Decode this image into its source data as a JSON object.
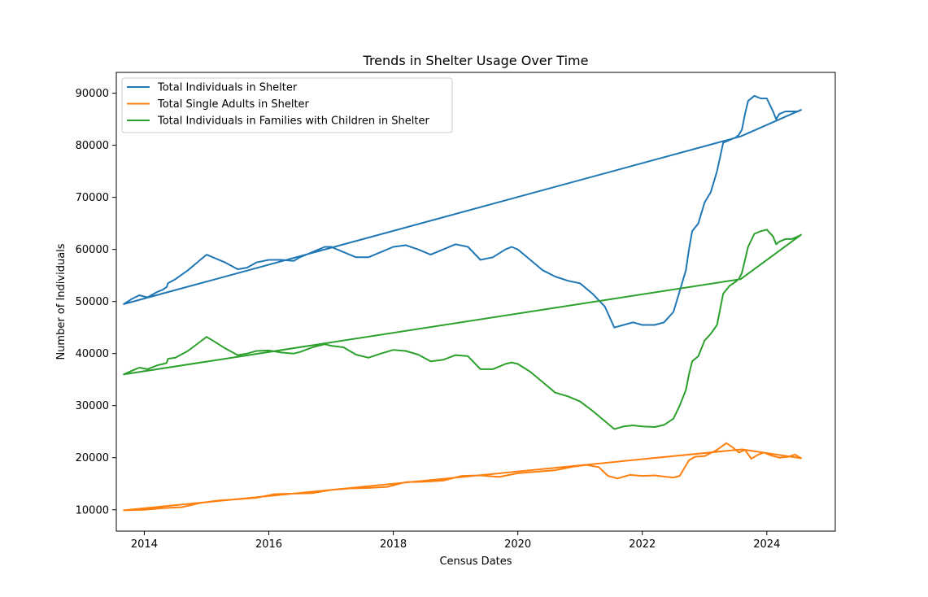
{
  "chart_data": {
    "type": "line",
    "title": "Trends in Shelter Usage Over Time",
    "xlabel": "Census Dates",
    "ylabel": "Number of Individuals",
    "xlim": [
      2013.55,
      2025.1
    ],
    "ylim": [
      5900,
      94000
    ],
    "x_ticks": [
      2014,
      2016,
      2018,
      2020,
      2022,
      2024
    ],
    "x_tick_labels": [
      "2014",
      "2016",
      "2018",
      "2020",
      "2022",
      "2024"
    ],
    "y_ticks": [
      10000,
      20000,
      30000,
      40000,
      50000,
      60000,
      70000,
      80000,
      90000
    ],
    "y_tick_labels": [
      "10000",
      "20000",
      "30000",
      "40000",
      "50000",
      "60000",
      "70000",
      "80000",
      "90000"
    ],
    "grid": false,
    "legend_position": "top-left",
    "series": [
      {
        "name": "Total Individuals in Shelter",
        "color": "#1f77b4",
        "x": [
          2013.67,
          2013.8,
          2013.92,
          2014.05,
          2014.2,
          2014.3,
          2014.36,
          2014.38,
          2014.5,
          2014.7,
          2014.9,
          2015.0,
          2015.1,
          2015.3,
          2015.5,
          2015.65,
          2015.8,
          2016.0,
          2016.2,
          2016.4,
          2016.5,
          2016.7,
          2016.9,
          2017.0,
          2017.2,
          2017.4,
          2017.6,
          2017.8,
          2018.0,
          2018.2,
          2018.4,
          2018.6,
          2018.8,
          2019.0,
          2019.2,
          2019.4,
          2019.6,
          2019.8,
          2019.9,
          2020.0,
          2020.2,
          2020.4,
          2020.6,
          2020.8,
          2021.0,
          2021.2,
          2021.4,
          2021.55,
          2021.7,
          2021.85,
          2022.0,
          2022.2,
          2022.35,
          2022.5,
          2022.6,
          2022.7,
          2022.75,
          2022.8,
          2022.9,
          2023.0,
          2023.1,
          2023.2,
          2023.3,
          2023.4,
          2023.5,
          2023.55,
          2023.6,
          2023.65,
          2023.7,
          2023.8,
          2023.9,
          2024.0,
          2024.1,
          2024.15,
          2024.2,
          2024.3,
          2024.4,
          2024.5,
          2024.55,
          2023.58,
          2013.67
        ],
        "y": [
          49500,
          50500,
          51200,
          50800,
          51800,
          52300,
          52800,
          53500,
          54300,
          56000,
          58000,
          59000,
          58500,
          57500,
          56200,
          56500,
          57500,
          58000,
          58000,
          57800,
          58500,
          59500,
          60500,
          60500,
          59500,
          58500,
          58500,
          59500,
          60500,
          60800,
          60000,
          59000,
          60000,
          61000,
          60500,
          58000,
          58500,
          60000,
          60500,
          60000,
          58000,
          56000,
          54800,
          54000,
          53500,
          51500,
          49000,
          45000,
          45500,
          46000,
          45500,
          45500,
          46000,
          48000,
          52000,
          56000,
          60000,
          63500,
          65000,
          69000,
          71000,
          75000,
          80500,
          81000,
          81500,
          82000,
          83000,
          86000,
          88500,
          89500,
          89000,
          89000,
          86500,
          85000,
          86000,
          86500,
          86500,
          86500,
          86800,
          81700,
          49500
        ]
      },
      {
        "name": "Total Single Adults in Shelter",
        "color": "#ff7f0e",
        "x": [
          2013.67,
          2014.0,
          2014.3,
          2014.6,
          2014.9,
          2015.2,
          2015.5,
          2015.8,
          2016.1,
          2016.4,
          2016.7,
          2017.0,
          2017.3,
          2017.6,
          2017.9,
          2018.2,
          2018.5,
          2018.8,
          2019.1,
          2019.4,
          2019.7,
          2020.0,
          2020.3,
          2020.6,
          2020.9,
          2021.1,
          2021.3,
          2021.45,
          2021.6,
          2021.8,
          2022.0,
          2022.2,
          2022.4,
          2022.5,
          2022.6,
          2022.75,
          2022.85,
          2023.0,
          2023.2,
          2023.35,
          2023.45,
          2023.55,
          2023.65,
          2023.75,
          2023.85,
          2023.95,
          2024.05,
          2024.2,
          2024.35,
          2024.45,
          2024.55,
          2023.6,
          2013.67
        ],
        "y": [
          9900,
          10000,
          10300,
          10500,
          11300,
          11800,
          12000,
          12300,
          13000,
          13100,
          13200,
          13800,
          14100,
          14200,
          14400,
          15300,
          15400,
          15600,
          16500,
          16600,
          16300,
          17000,
          17300,
          17600,
          18300,
          18600,
          18200,
          16500,
          16000,
          16700,
          16500,
          16600,
          16300,
          16200,
          16500,
          19500,
          20200,
          20300,
          21500,
          22800,
          22000,
          21000,
          21500,
          19800,
          20500,
          21000,
          20500,
          20000,
          20200,
          20600,
          19900,
          21600,
          9900
        ]
      },
      {
        "name": "Total Individuals in Families with Children in Shelter",
        "color": "#2ca02c",
        "x": [
          2013.67,
          2013.8,
          2013.92,
          2014.05,
          2014.2,
          2014.3,
          2014.36,
          2014.38,
          2014.5,
          2014.7,
          2014.9,
          2015.0,
          2015.1,
          2015.3,
          2015.5,
          2015.65,
          2015.8,
          2016.0,
          2016.2,
          2016.4,
          2016.5,
          2016.7,
          2016.9,
          2017.0,
          2017.2,
          2017.4,
          2017.6,
          2017.8,
          2018.0,
          2018.2,
          2018.4,
          2018.6,
          2018.8,
          2019.0,
          2019.2,
          2019.4,
          2019.6,
          2019.8,
          2019.9,
          2020.0,
          2020.2,
          2020.4,
          2020.6,
          2020.8,
          2021.0,
          2021.2,
          2021.4,
          2021.55,
          2021.7,
          2021.85,
          2022.0,
          2022.2,
          2022.35,
          2022.5,
          2022.6,
          2022.7,
          2022.75,
          2022.8,
          2022.9,
          2023.0,
          2023.1,
          2023.2,
          2023.3,
          2023.4,
          2023.5,
          2023.55,
          2023.6,
          2023.65,
          2023.7,
          2023.8,
          2023.9,
          2024.0,
          2024.1,
          2024.15,
          2024.2,
          2024.3,
          2024.4,
          2024.5,
          2024.55,
          2023.58,
          2013.67
        ],
        "y": [
          36000,
          36700,
          37300,
          37000,
          37700,
          38000,
          38200,
          39000,
          39200,
          40500,
          42300,
          43200,
          42500,
          41000,
          39700,
          40000,
          40500,
          40600,
          40200,
          40000,
          40300,
          41200,
          41800,
          41500,
          41200,
          39800,
          39200,
          40000,
          40700,
          40500,
          39800,
          38500,
          38800,
          39700,
          39500,
          37000,
          37000,
          38000,
          38300,
          38000,
          36500,
          34500,
          32500,
          31800,
          30800,
          29000,
          27000,
          25500,
          26000,
          26200,
          26000,
          25900,
          26300,
          27500,
          30000,
          33000,
          36000,
          38500,
          39500,
          42500,
          43800,
          45500,
          51500,
          53000,
          53800,
          54300,
          55500,
          58000,
          60500,
          63000,
          63500,
          63800,
          62500,
          61000,
          61500,
          62000,
          62000,
          62500,
          62800,
          54300,
          36000
        ]
      }
    ]
  }
}
